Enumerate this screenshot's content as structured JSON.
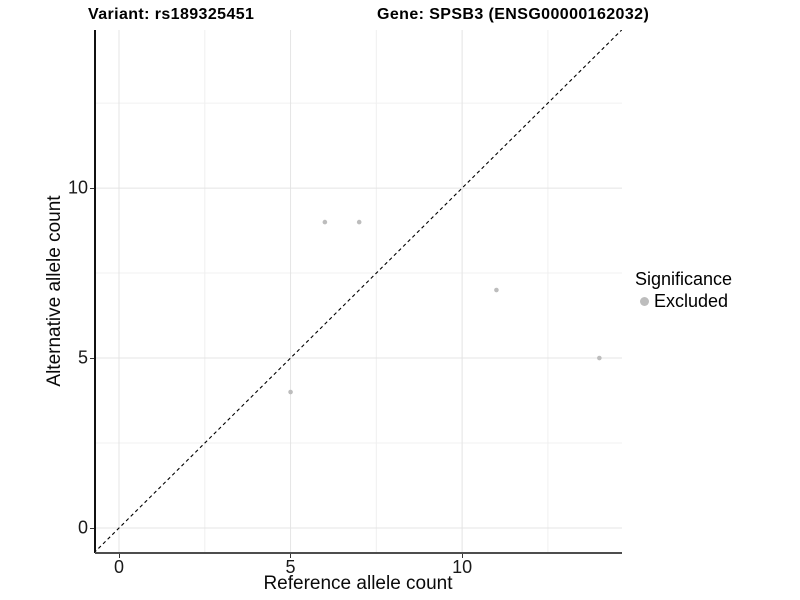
{
  "chart_data": {
    "type": "scatter",
    "titles": [
      "Variant: rs189325451",
      "Gene: SPSB3 (ENSG00000162032)"
    ],
    "xlabel": "Reference allele count",
    "ylabel": "Alternative allele count",
    "xlim": [
      -0.7,
      14.66
    ],
    "ylim": [
      -0.735,
      14.65
    ],
    "x_major_ticks": [
      0,
      5,
      10
    ],
    "x_minor_ticks": [
      2.5,
      7.5,
      12.5
    ],
    "y_major_ticks": [
      0,
      5,
      10
    ],
    "y_minor_ticks": [
      2.5,
      7.5,
      12.5
    ],
    "grid": true,
    "legend_position": "right",
    "identity_line": {
      "style": "dashed",
      "from": [
        -0.735,
        -0.735
      ],
      "to": [
        14.66,
        14.66
      ]
    },
    "series": [
      {
        "name": "Excluded",
        "color": "#bdbdbd",
        "points": [
          [
            5,
            4
          ],
          [
            6,
            9
          ],
          [
            7,
            9
          ],
          [
            11,
            7
          ],
          [
            14,
            5
          ]
        ]
      }
    ],
    "legend": {
      "title": "Significance",
      "items": [
        {
          "label": "Excluded",
          "color": "#bdbdbd"
        }
      ]
    },
    "colors": {
      "background": "#ffffff",
      "grid_major": "#e4e4e4",
      "grid_minor": "#f0f0f0",
      "identity_line": "#000000",
      "tick": "#333333"
    }
  }
}
